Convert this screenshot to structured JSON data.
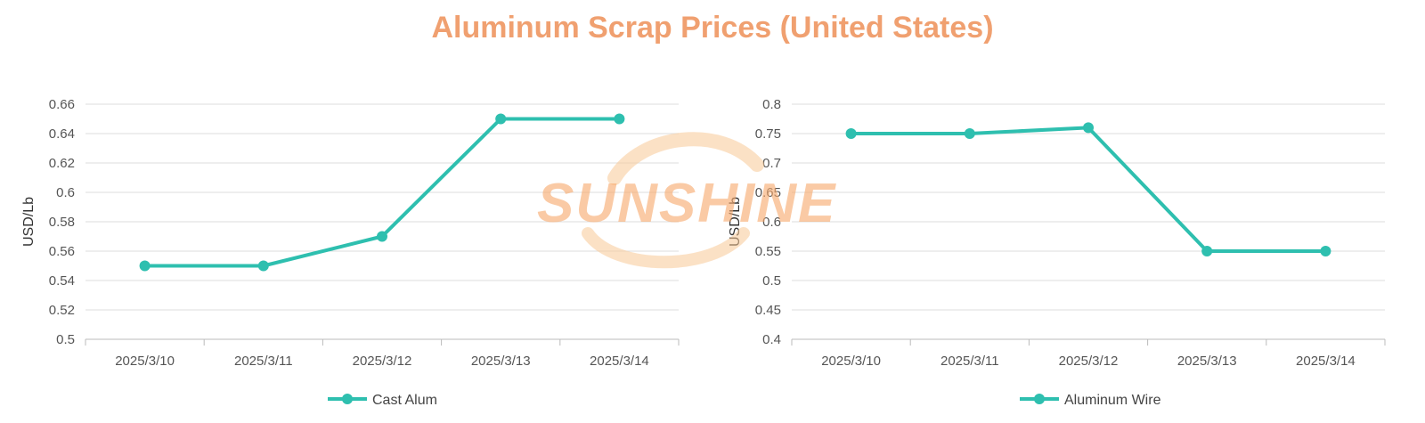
{
  "title": "Aluminum Scrap Prices (United States)",
  "watermark": "SUNSHINE",
  "colors": {
    "title": "#f0a070",
    "series": "#2ebfaf",
    "grid": "#dddddd",
    "axis": "#bbbbbb"
  },
  "chart_data": [
    {
      "type": "line",
      "categories": [
        "2025/3/10",
        "2025/3/11",
        "2025/3/12",
        "2025/3/13",
        "2025/3/14"
      ],
      "series": [
        {
          "name": "Cast Alum",
          "values": [
            0.55,
            0.55,
            0.57,
            0.65,
            0.65
          ]
        }
      ],
      "ylabel": "USD/Lb",
      "ylim": [
        0.5,
        0.66
      ],
      "yticks": [
        "0.5",
        "0.52",
        "0.54",
        "0.56",
        "0.58",
        "0.6",
        "0.62",
        "0.64",
        "0.66"
      ],
      "grid": true,
      "legend": "bottom"
    },
    {
      "type": "line",
      "categories": [
        "2025/3/10",
        "2025/3/11",
        "2025/3/12",
        "2025/3/13",
        "2025/3/14"
      ],
      "series": [
        {
          "name": "Aluminum Wire",
          "values": [
            0.75,
            0.75,
            0.76,
            0.55,
            0.55
          ]
        }
      ],
      "ylabel": "USD/Lb",
      "ylim": [
        0.4,
        0.8
      ],
      "yticks": [
        "0.4",
        "0.45",
        "0.5",
        "0.55",
        "0.6",
        "0.65",
        "0.7",
        "0.75",
        "0.8"
      ],
      "grid": true,
      "legend": "bottom"
    }
  ]
}
